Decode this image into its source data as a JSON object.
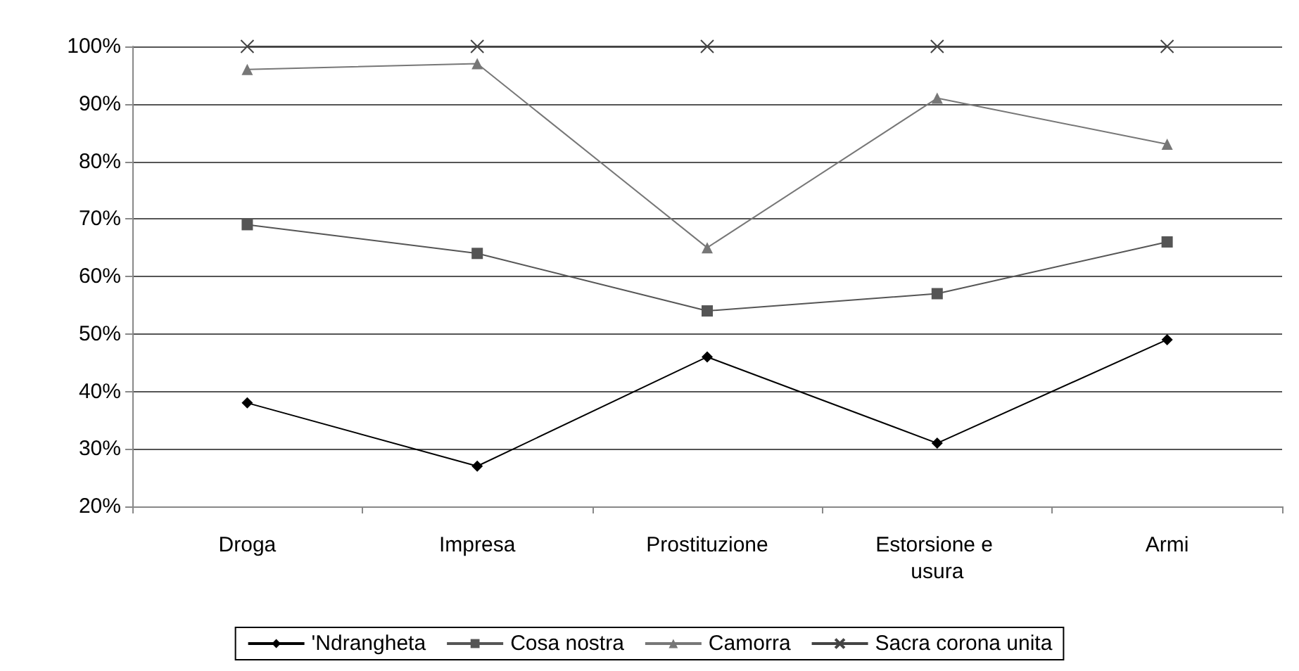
{
  "chart_data": {
    "type": "line",
    "categories": [
      "Droga",
      "Impresa",
      "Prostituzione",
      "Estorsione e usura",
      "Armi"
    ],
    "series": [
      {
        "name": "'Ndrangheta",
        "color": "#000000",
        "marker": "diamond",
        "values": [
          38,
          27,
          46,
          31,
          49
        ]
      },
      {
        "name": "Cosa nostra",
        "color": "#555555",
        "marker": "square",
        "values": [
          69,
          64,
          54,
          57,
          66
        ]
      },
      {
        "name": "Camorra",
        "color": "#777777",
        "marker": "triangle",
        "values": [
          96,
          97,
          65,
          91,
          83
        ]
      },
      {
        "name": "Sacra corona unita",
        "color": "#444444",
        "marker": "cross",
        "values": [
          100,
          100,
          100,
          100,
          100
        ]
      }
    ],
    "ylim": [
      20,
      100
    ],
    "yticks": [
      {
        "value": 20,
        "label": "20%"
      },
      {
        "value": 30,
        "label": "30%"
      },
      {
        "value": 40,
        "label": "40%"
      },
      {
        "value": 50,
        "label": "50%"
      },
      {
        "value": 60,
        "label": "60%"
      },
      {
        "value": 70,
        "label": "70%"
      },
      {
        "value": 80,
        "label": "80%"
      },
      {
        "value": 90,
        "label": "90%"
      },
      {
        "value": 100,
        "label": "100%"
      }
    ],
    "grid": "y",
    "legend": "bottom",
    "line_style": "solid"
  }
}
